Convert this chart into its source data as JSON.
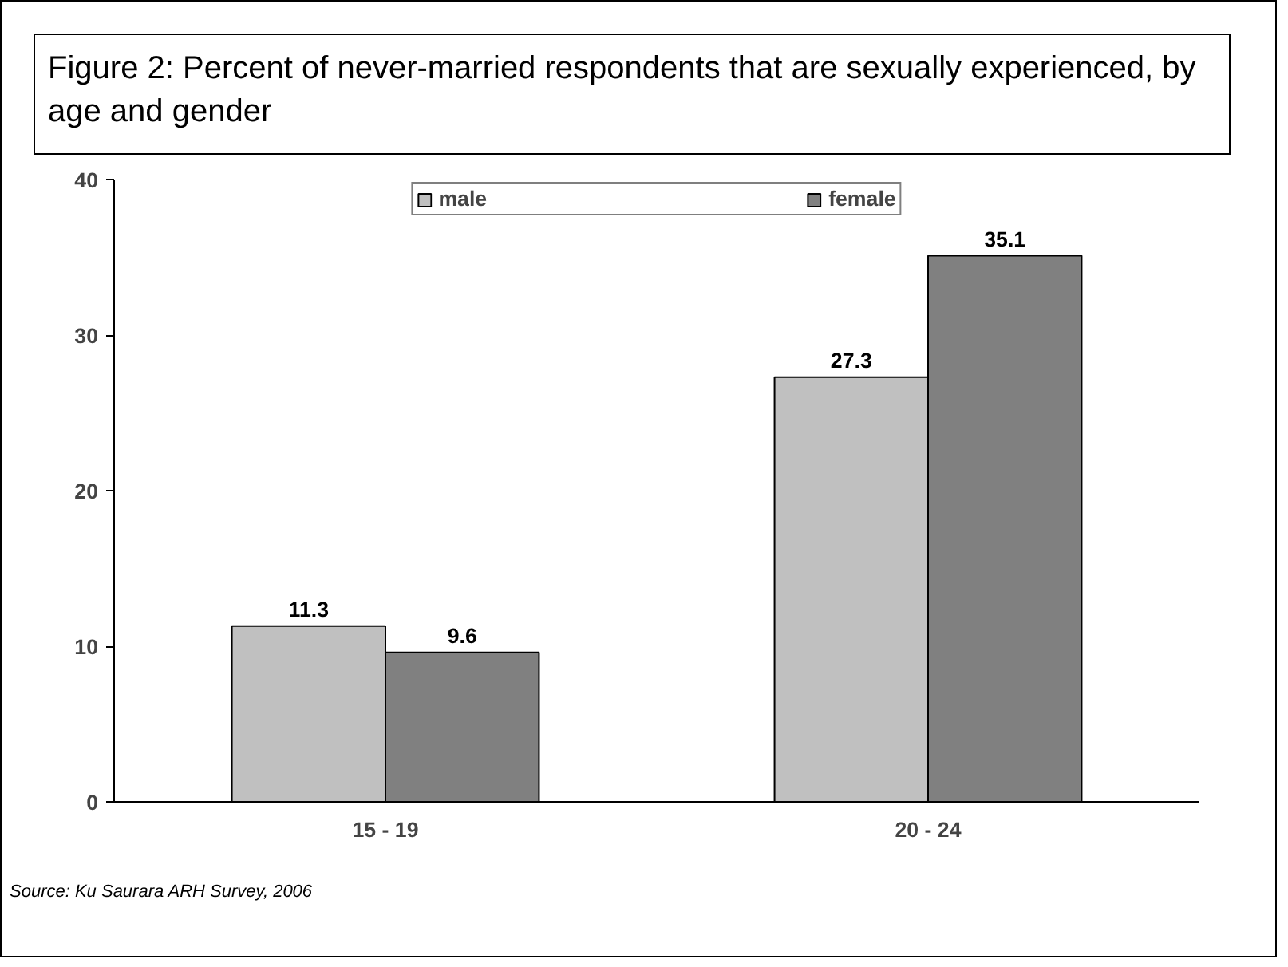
{
  "chart_data": {
    "type": "bar",
    "title": "Figure 2: Percent of never-married respondents that are sexually experienced, by age and gender",
    "categories": [
      "15 - 19",
      "20 - 24"
    ],
    "series": [
      {
        "name": "male",
        "color": "#c0c0c0",
        "values": [
          11.3,
          27.3
        ]
      },
      {
        "name": "female",
        "color": "#808080",
        "values": [
          9.6,
          35.1
        ]
      }
    ],
    "ylim": [
      0,
      40
    ],
    "yticks": [
      0,
      10,
      20,
      30,
      40
    ],
    "grid": false,
    "legend": "top",
    "data_labels": true,
    "annotations": [
      "Source: Ku Saurara ARH Survey, 2006"
    ]
  }
}
